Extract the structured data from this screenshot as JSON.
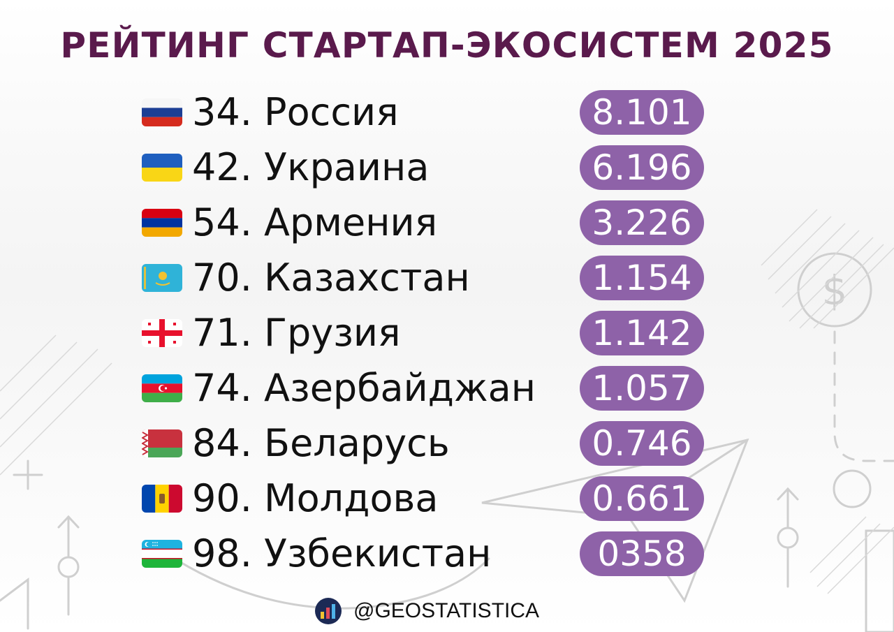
{
  "title": "РЕЙТИНГ СТАРТАП-ЭКОСИСТЕМ 2025",
  "colors": {
    "title": "#5a1a4c",
    "pill": "#8e62a8",
    "text": "#111111",
    "decor": "#c9c9c9"
  },
  "chart_data": {
    "type": "table",
    "title": "РЕЙТИНГ СТАРТАП-ЭКОСИСТЕМ 2025",
    "rows": [
      {
        "label": "34. Россия",
        "country": "Россия",
        "rank": 34,
        "score": "8.101",
        "flag": "russia-flag"
      },
      {
        "label": "42. Украина",
        "country": "Украина",
        "rank": 42,
        "score": "6.196",
        "flag": "ukraine-flag"
      },
      {
        "label": "54. Армения",
        "country": "Армения",
        "rank": 54,
        "score": "3.226",
        "flag": "armenia-flag"
      },
      {
        "label": "70. Казахстан",
        "country": "Казахстан",
        "rank": 70,
        "score": "1.154",
        "flag": "kazakhstan-flag"
      },
      {
        "label": "71. Грузия",
        "country": "Грузия",
        "rank": 71,
        "score": "1.142",
        "flag": "georgia-flag"
      },
      {
        "label": "74. Азербайджан",
        "country": "Азербайджан",
        "rank": 74,
        "score": "1.057",
        "flag": "azerbaijan-flag"
      },
      {
        "label": "84. Беларусь",
        "country": "Беларусь",
        "rank": 84,
        "score": "0.746",
        "flag": "belarus-flag"
      },
      {
        "label": "90. Молдова",
        "country": "Молдова",
        "rank": 90,
        "score": "0.661",
        "flag": "moldova-flag"
      },
      {
        "label": "98. Узбекистан",
        "country": "Узбекистан",
        "rank": 98,
        "score": "0358",
        "flag": "uzbekistan-flag"
      }
    ]
  },
  "footer": {
    "icon": "bar-chart-logo-icon",
    "handle": "@GEOSTATISTICA"
  }
}
